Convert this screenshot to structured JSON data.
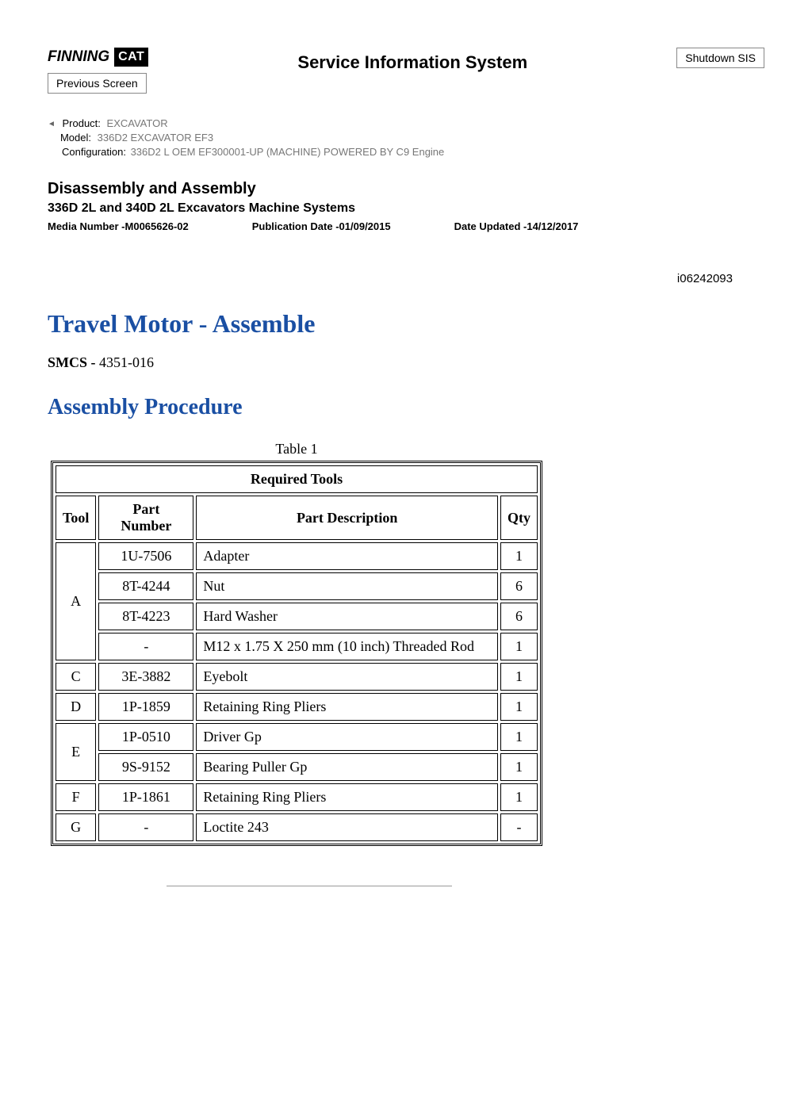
{
  "header": {
    "logo_finning": "FINNING",
    "logo_cat": "CAT",
    "center_title": "Service Information System",
    "shutdown_btn": "Shutdown SIS",
    "previous_btn": "Previous Screen"
  },
  "meta": {
    "product_label": "Product:",
    "product_value": "EXCAVATOR",
    "model_label": "Model:",
    "model_value": "336D2 EXCAVATOR EF3",
    "config_label": "Configuration:",
    "config_value": "336D2 L OEM EF300001-UP (MACHINE) POWERED BY C9 Engine"
  },
  "doc": {
    "heading": "Disassembly and Assembly",
    "subtitle": "336D 2L and 340D 2L Excavators Machine Systems",
    "media_number": "Media Number -M0065626-02",
    "pub_date": "Publication Date -01/09/2015",
    "date_updated": "Date Updated -14/12/2017",
    "doc_id": "i06242093",
    "title": "Travel Motor - Assemble",
    "smcs_label": "SMCS - ",
    "smcs_value": "4351-016",
    "procedure_title": "Assembly Procedure"
  },
  "table": {
    "caption": "Table 1",
    "title": "Required Tools",
    "columns": [
      "Tool",
      "Part Number",
      "Part Description",
      "Qty"
    ],
    "rows": [
      {
        "tool": "A",
        "rowspan": 4,
        "pn": "1U-7506",
        "desc": "Adapter",
        "qty": "1"
      },
      {
        "tool": "",
        "rowspan": 0,
        "pn": "8T-4244",
        "desc": "Nut",
        "qty": "6"
      },
      {
        "tool": "",
        "rowspan": 0,
        "pn": "8T-4223",
        "desc": "Hard Washer",
        "qty": "6"
      },
      {
        "tool": "",
        "rowspan": 0,
        "pn": "-",
        "desc": "M12 x 1.75 X 250 mm (10 inch) Threaded Rod",
        "qty": "1"
      },
      {
        "tool": "C",
        "rowspan": 1,
        "pn": "3E-3882",
        "desc": "Eyebolt",
        "qty": "1"
      },
      {
        "tool": "D",
        "rowspan": 1,
        "pn": "1P-1859",
        "desc": "Retaining Ring Pliers",
        "qty": "1"
      },
      {
        "tool": "E",
        "rowspan": 2,
        "pn": "1P-0510",
        "desc": "Driver Gp",
        "qty": "1"
      },
      {
        "tool": "",
        "rowspan": 0,
        "pn": "9S-9152",
        "desc": "Bearing Puller Gp",
        "qty": "1"
      },
      {
        "tool": "F",
        "rowspan": 1,
        "pn": "1P-1861",
        "desc": "Retaining Ring Pliers",
        "qty": "1"
      },
      {
        "tool": "G",
        "rowspan": 1,
        "pn": "-",
        "desc": "Loctite 243",
        "qty": "-"
      }
    ]
  }
}
